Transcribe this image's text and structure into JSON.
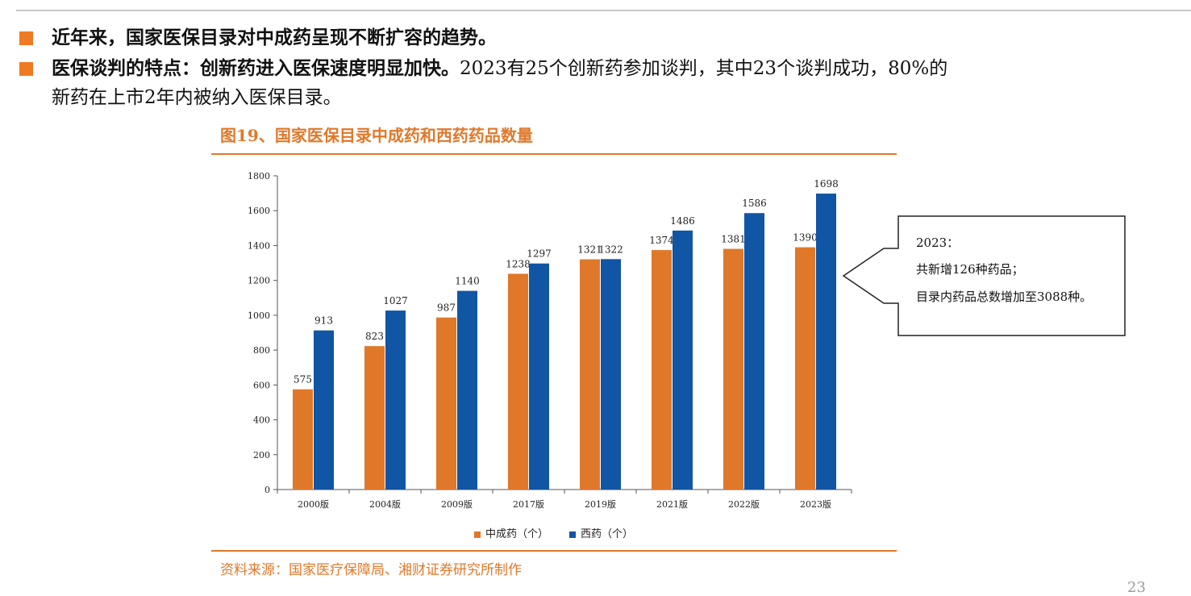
{
  "bullets": {
    "b1": "近年来，国家医保目录对中成药呈现不断扩容的趋势。",
    "b2_bold": "医保谈判的特点：创新药进入医保速度明显加快。",
    "b2_normal": "2023有25个创新药参加谈判，其中23个谈判成功，80%的",
    "b2_cont": "新药在上市2年内被纳入医保目录。"
  },
  "figure": {
    "title": "图19、国家医保目录中成药和西药药品数量",
    "source": "资料来源：国家医疗保障局、湘财证券研究所制作"
  },
  "callout": {
    "line1": "2023：",
    "line2": "共新增126种药品；",
    "line3": "目录内药品总数增加至3088种。"
  },
  "page_number": "23",
  "colors": {
    "accent": "#ee7a23",
    "tcm": "#e0782a",
    "western": "#1155a5"
  },
  "chart_data": {
    "type": "bar",
    "categories": [
      "2000版",
      "2004版",
      "2009版",
      "2017版",
      "2019版",
      "2021版",
      "2022版",
      "2023版"
    ],
    "series": [
      {
        "name": "中成药（个）",
        "values": [
          575,
          823,
          987,
          1238,
          1321,
          1374,
          1381,
          1390
        ]
      },
      {
        "name": "西药（个）",
        "values": [
          913,
          1027,
          1140,
          1297,
          1322,
          1486,
          1586,
          1698
        ]
      }
    ],
    "yticks": [
      0,
      200,
      400,
      600,
      800,
      1000,
      1200,
      1400,
      1600,
      1800
    ],
    "ylim": [
      0,
      1800
    ],
    "legend": "bottom-center"
  }
}
